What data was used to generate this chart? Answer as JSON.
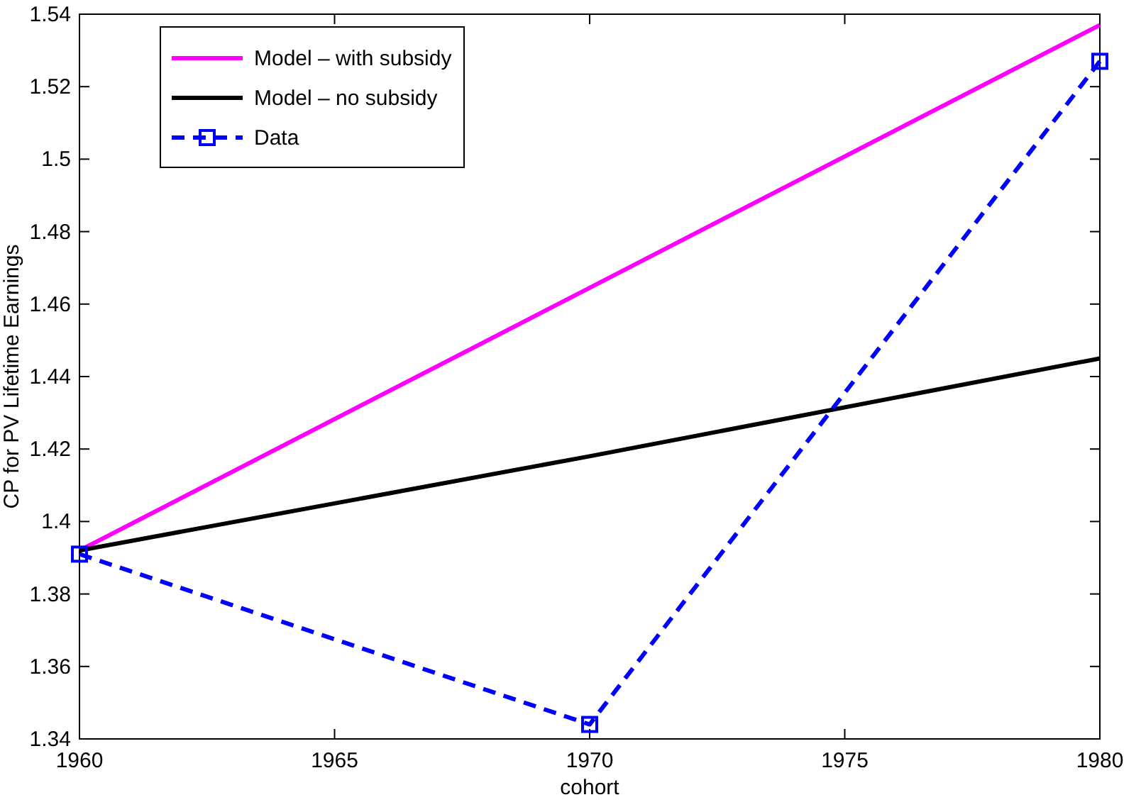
{
  "chart_data": {
    "type": "line",
    "xlabel": "cohort",
    "ylabel": "CP for PV Lifetime Earnings",
    "x": [
      1960,
      1970,
      1980
    ],
    "series": [
      {
        "name": "Model – with subsidy",
        "color": "#ff00ff",
        "values": [
          1.392,
          1.4645,
          1.537
        ],
        "line_style": "solid",
        "marker": "none"
      },
      {
        "name": "Model – no subsidy",
        "color": "#000000",
        "values": [
          1.392,
          1.418,
          1.445
        ],
        "line_style": "solid",
        "marker": "none"
      },
      {
        "name": "Data",
        "color": "#0000ff",
        "values": [
          1.391,
          1.344,
          1.527
        ],
        "line_style": "dashed",
        "marker": "square"
      }
    ],
    "xlim": [
      1960,
      1980
    ],
    "xticks": [
      1960,
      1965,
      1970,
      1975,
      1980
    ],
    "ylim": [
      1.34,
      1.54
    ],
    "yticks": [
      1.34,
      1.36,
      1.38,
      1.4,
      1.42,
      1.44,
      1.46,
      1.48,
      1.5,
      1.52,
      1.54
    ],
    "grid": false,
    "legend": "top left"
  }
}
